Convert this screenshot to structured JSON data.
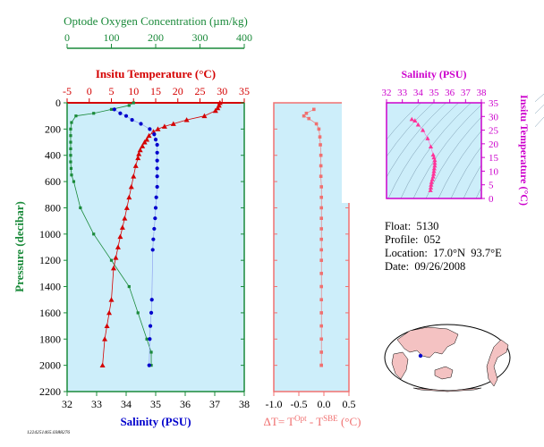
{
  "colors": {
    "plot_bg": "#cdeefa",
    "oxygen": "#1a8a3a",
    "temperature": "#d40000",
    "salinity": "#0000cc",
    "delta": "#f07070",
    "ts": "#cc00cc",
    "land": "#f4c2c2"
  },
  "main_chart": {
    "y_axis": {
      "label": "Pressure (decibar)",
      "min": 0,
      "max": 2200,
      "ticks": [
        0,
        200,
        400,
        600,
        800,
        1000,
        1200,
        1400,
        1600,
        1800,
        2000,
        2200
      ]
    },
    "oxygen_axis": {
      "title": "Optode Oxygen Concentration (µm/kg)",
      "min": 0,
      "max": 400,
      "ticks": [
        0,
        100,
        200,
        300,
        400
      ]
    },
    "temperature_axis": {
      "title": "Insitu Temperature (°C)",
      "min": -5,
      "max": 35,
      "ticks": [
        -5,
        0,
        5,
        10,
        15,
        20,
        25,
        30,
        35
      ]
    },
    "salinity_axis": {
      "title": "Salinity (PSU)",
      "min": 32,
      "max": 38,
      "ticks": [
        32,
        33,
        34,
        35,
        36,
        37,
        38
      ]
    },
    "footnote": "1224251465.0388276"
  },
  "chart_data": [
    {
      "type": "line",
      "name": "oxygen-profile",
      "x_unit": "µm/kg",
      "y_unit": "decibar",
      "x": [
        150,
        140,
        100,
        60,
        20,
        10,
        8,
        8,
        8,
        8,
        8,
        8,
        9,
        10,
        15,
        30,
        60,
        100,
        140,
        160,
        180,
        190,
        190
      ],
      "y": [
        0,
        20,
        50,
        80,
        100,
        150,
        200,
        250,
        300,
        350,
        400,
        450,
        500,
        550,
        600,
        800,
        1000,
        1200,
        1400,
        1600,
        1800,
        1900,
        2000
      ]
    },
    {
      "type": "line",
      "name": "temperature-profile",
      "x_unit": "°C",
      "y_unit": "decibar",
      "x": [
        29.5,
        29.3,
        29,
        28.5,
        26,
        22,
        19,
        17,
        15.5,
        14.5,
        13.5,
        13,
        12.5,
        12,
        11.5,
        11.2,
        11,
        10.5,
        10,
        9.5,
        9,
        8.5,
        8,
        7.5,
        7,
        6.5,
        6,
        5.5,
        5,
        4.5,
        4,
        3.5,
        3
      ],
      "y": [
        0,
        20,
        40,
        60,
        100,
        130,
        160,
        180,
        200,
        220,
        250,
        280,
        300,
        330,
        360,
        390,
        420,
        480,
        560,
        640,
        720,
        800,
        880,
        950,
        1020,
        1100,
        1180,
        1260,
        1500,
        1600,
        1700,
        1800,
        2000
      ]
    },
    {
      "type": "line",
      "name": "salinity-profile",
      "x_unit": "PSU",
      "y_unit": "decibar",
      "x": [
        33.6,
        33.8,
        34.0,
        34.2,
        34.5,
        34.8,
        34.95,
        35.0,
        35.05,
        35.05,
        35.05,
        35.05,
        35.05,
        35.05,
        35.02,
        35.0,
        34.98,
        34.95,
        34.92,
        34.9,
        34.87,
        34.85,
        34.82,
        34.8,
        34.78
      ],
      "y": [
        50,
        80,
        100,
        130,
        160,
        200,
        240,
        280,
        320,
        380,
        440,
        500,
        560,
        640,
        720,
        800,
        880,
        960,
        1040,
        1120,
        1500,
        1600,
        1700,
        1800,
        2000
      ]
    },
    {
      "type": "scatter",
      "name": "delta-t-profile",
      "xlabel": "ΔT= T^Opt - T^SBE (°C)",
      "x_unit": "°C",
      "y_unit": "decibar",
      "xlim": [
        -1.0,
        0.5
      ],
      "x_ticks": [
        -1.0,
        -0.5,
        0.0,
        0.5
      ],
      "x": [
        -0.2,
        -0.35,
        -0.4,
        -0.3,
        -0.15,
        -0.1,
        -0.08,
        -0.07,
        -0.06,
        -0.06,
        -0.06,
        -0.05,
        -0.05,
        -0.05,
        -0.05,
        -0.05,
        -0.05,
        -0.05,
        -0.05,
        -0.05,
        -0.05,
        -0.05,
        -0.05,
        -0.05,
        -0.05,
        -0.05,
        -0.05,
        -0.05
      ],
      "y": [
        50,
        80,
        100,
        120,
        160,
        200,
        260,
        320,
        400,
        480,
        560,
        640,
        720,
        800,
        880,
        960,
        1040,
        1120,
        1200,
        1300,
        1400,
        1500,
        1600,
        1700,
        1800,
        1900,
        2000,
        2000
      ]
    },
    {
      "type": "scatter",
      "name": "ts-diagram",
      "title": "Salinity (PSU)",
      "ylabel": "Insitu Temperature (°C)",
      "xlim": [
        32,
        38
      ],
      "ylim": [
        0,
        35
      ],
      "x_ticks": [
        32,
        33,
        34,
        35,
        36,
        37,
        38
      ],
      "y_ticks": [
        0,
        5,
        10,
        15,
        20,
        25,
        30,
        35
      ],
      "x": [
        33.6,
        33.8,
        34.0,
        34.3,
        34.6,
        34.8,
        34.95,
        35.0,
        35.05,
        35.05,
        35.05,
        35.02,
        35.0,
        34.98,
        34.95,
        34.9,
        34.85,
        34.82,
        34.8,
        34.78
      ],
      "y": [
        29,
        28.5,
        27,
        25,
        22,
        19,
        16,
        15,
        14,
        13,
        12,
        11,
        10,
        9,
        8,
        7,
        6,
        5,
        4,
        3
      ]
    }
  ],
  "float_info": {
    "float": "Float:  5130",
    "profile": "Profile:  052",
    "location": "Location:  17.0°N  93.7°E",
    "date": "Date:  09/26/2008"
  }
}
